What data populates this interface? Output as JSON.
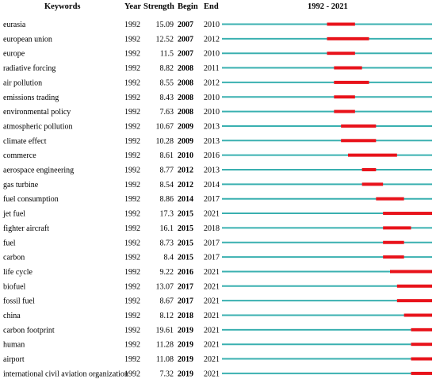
{
  "chart_data": {
    "type": "table",
    "headers": {
      "keywords": "Keywords",
      "year": "Year",
      "strength": "Strength",
      "begin": "Begin",
      "end": "End",
      "range": "1992 - 2021"
    },
    "timeline": [
      1992,
      2021
    ],
    "colors": {
      "baseline": "#3ab0b0",
      "burst": "#e8131b"
    },
    "rows": [
      {
        "keyword": "eurasia",
        "year": "1992",
        "strength": "15.09",
        "begin": "2007",
        "end": "2010"
      },
      {
        "keyword": "european union",
        "year": "1992",
        "strength": "12.52",
        "begin": "2007",
        "end": "2012"
      },
      {
        "keyword": "europe",
        "year": "1992",
        "strength": "11.5",
        "begin": "2007",
        "end": "2010"
      },
      {
        "keyword": "radiative forcing",
        "year": "1992",
        "strength": "8.82",
        "begin": "2008",
        "end": "2011"
      },
      {
        "keyword": "air pollution",
        "year": "1992",
        "strength": "8.55",
        "begin": "2008",
        "end": "2012"
      },
      {
        "keyword": "emissions trading",
        "year": "1992",
        "strength": "8.43",
        "begin": "2008",
        "end": "2010"
      },
      {
        "keyword": "environmental policy",
        "year": "1992",
        "strength": "7.63",
        "begin": "2008",
        "end": "2010"
      },
      {
        "keyword": "atmospheric pollution",
        "year": "1992",
        "strength": "10.67",
        "begin": "2009",
        "end": "2013"
      },
      {
        "keyword": "climate effect",
        "year": "1992",
        "strength": "10.28",
        "begin": "2009",
        "end": "2013"
      },
      {
        "keyword": "commerce",
        "year": "1992",
        "strength": "8.61",
        "begin": "2010",
        "end": "2016"
      },
      {
        "keyword": "aerospace engineering",
        "year": "1992",
        "strength": "8.77",
        "begin": "2012",
        "end": "2013"
      },
      {
        "keyword": "gas turbine",
        "year": "1992",
        "strength": "8.54",
        "begin": "2012",
        "end": "2014"
      },
      {
        "keyword": "fuel consumption",
        "year": "1992",
        "strength": "8.86",
        "begin": "2014",
        "end": "2017"
      },
      {
        "keyword": "jet fuel",
        "year": "1992",
        "strength": "17.3",
        "begin": "2015",
        "end": "2021"
      },
      {
        "keyword": "fighter aircraft",
        "year": "1992",
        "strength": "16.1",
        "begin": "2015",
        "end": "2018"
      },
      {
        "keyword": "fuel",
        "year": "1992",
        "strength": "8.73",
        "begin": "2015",
        "end": "2017"
      },
      {
        "keyword": "carbon",
        "year": "1992",
        "strength": "8.4",
        "begin": "2015",
        "end": "2017"
      },
      {
        "keyword": "life cycle",
        "year": "1992",
        "strength": "9.22",
        "begin": "2016",
        "end": "2021"
      },
      {
        "keyword": "biofuel",
        "year": "1992",
        "strength": "13.07",
        "begin": "2017",
        "end": "2021"
      },
      {
        "keyword": "fossil fuel",
        "year": "1992",
        "strength": "8.67",
        "begin": "2017",
        "end": "2021"
      },
      {
        "keyword": "china",
        "year": "1992",
        "strength": "8.12",
        "begin": "2018",
        "end": "2021"
      },
      {
        "keyword": "carbon footprint",
        "year": "1992",
        "strength": "19.61",
        "begin": "2019",
        "end": "2021"
      },
      {
        "keyword": "human",
        "year": "1992",
        "strength": "11.28",
        "begin": "2019",
        "end": "2021"
      },
      {
        "keyword": "airport",
        "year": "1992",
        "strength": "11.08",
        "begin": "2019",
        "end": "2021"
      },
      {
        "keyword": "international civil aviation organization",
        "year": "1992",
        "strength": "7.32",
        "begin": "2019",
        "end": "2021"
      }
    ]
  }
}
